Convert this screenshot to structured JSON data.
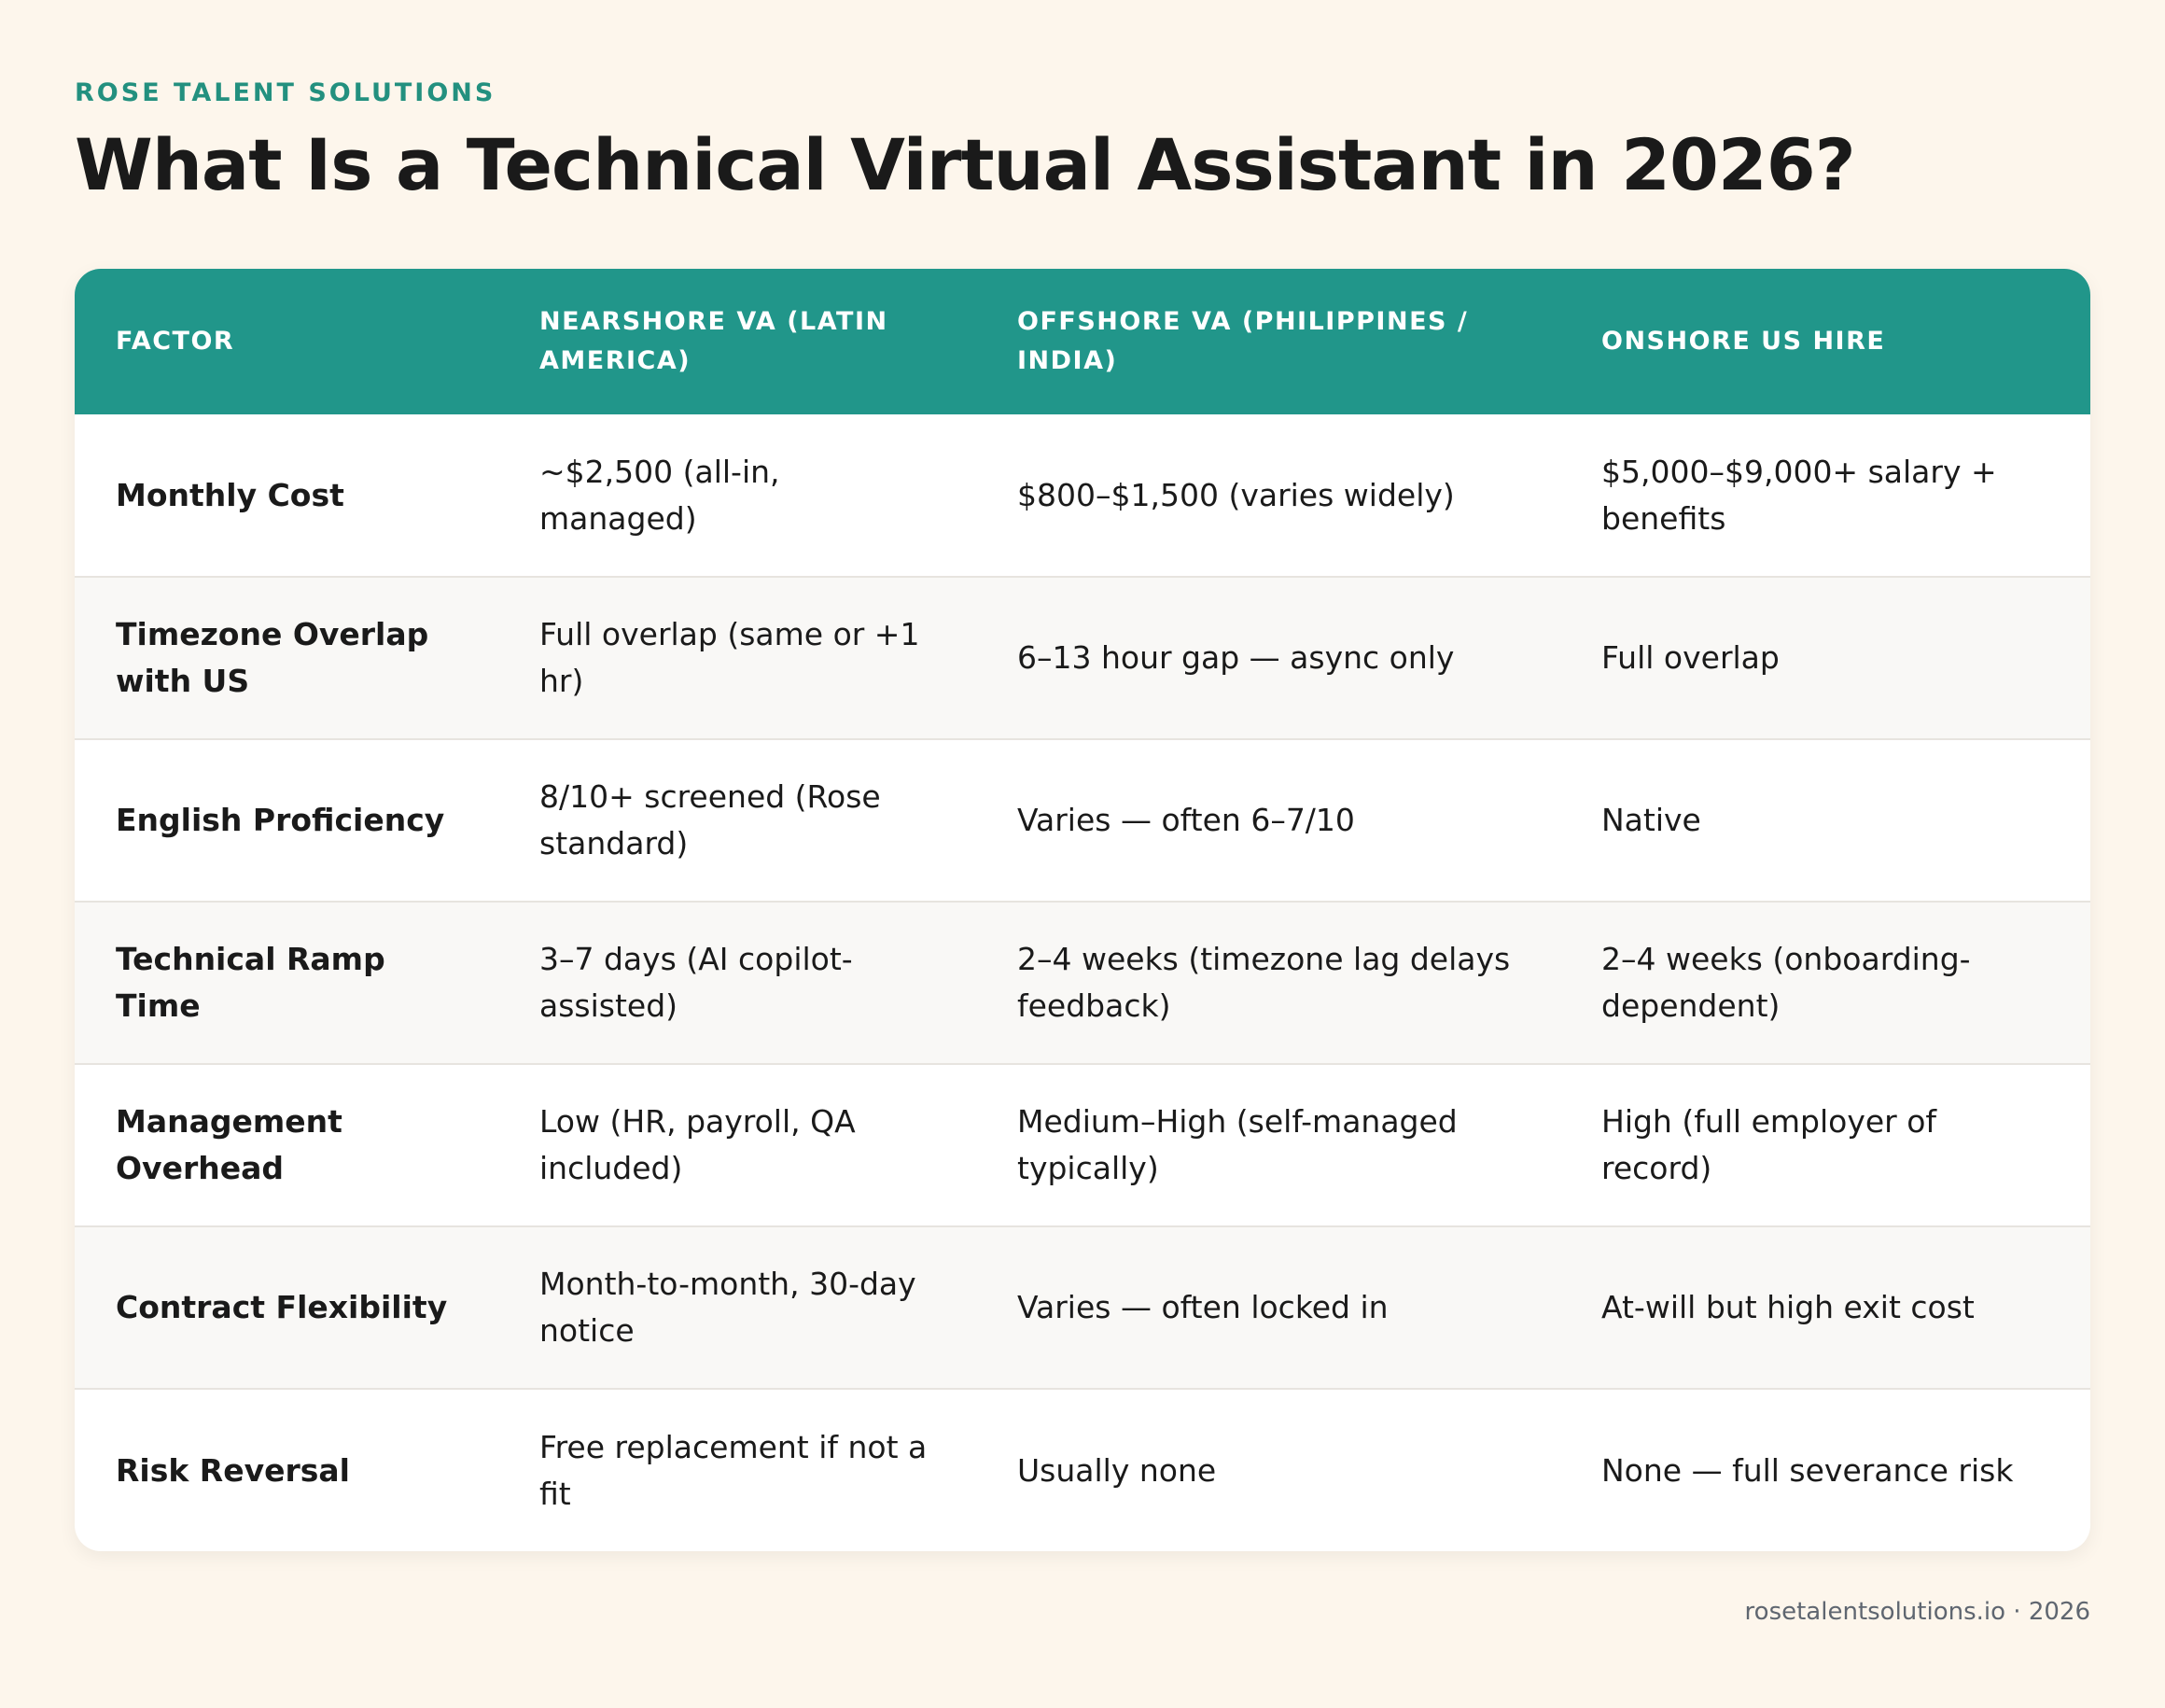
{
  "brand": "ROSE TALENT SOLUTIONS",
  "title": "What Is a Technical Virtual Assistant in 2026?",
  "table": {
    "headers": [
      "FACTOR",
      "NEARSHORE VA (LATIN AMERICA)",
      "OFFSHORE VA (PHILIPPINES / INDIA)",
      "ONSHORE US HIRE"
    ],
    "rows": [
      [
        "Monthly Cost",
        "~$2,500 (all-in, managed)",
        "$800–$1,500 (varies widely)",
        "$5,000–$9,000+ salary + benefits"
      ],
      [
        "Timezone Overlap with US",
        "Full overlap (same or +1 hr)",
        "6–13 hour gap — async only",
        "Full overlap"
      ],
      [
        "English Proficiency",
        "8/10+ screened (Rose standard)",
        "Varies — often 6–7/10",
        "Native"
      ],
      [
        "Technical Ramp Time",
        "3–7 days (AI copilot-assisted)",
        "2–4 weeks (timezone lag delays feedback)",
        "2–4 weeks (onboarding-dependent)"
      ],
      [
        "Management Overhead",
        "Low (HR, payroll, QA included)",
        "Medium–High (self-managed typically)",
        "High (full employer of record)"
      ],
      [
        "Contract Flexibility",
        "Month-to-month, 30-day notice",
        "Varies — often locked in",
        "At-will but high exit cost"
      ],
      [
        "Risk Reversal",
        "Free replacement if not a fit",
        "Usually none",
        "None — full severance risk"
      ]
    ]
  },
  "footer": "rosetalentsolutions.io · 2026",
  "colors": {
    "background": "#fdf6ec",
    "accent": "#21968a",
    "brand_text": "#23907f"
  }
}
